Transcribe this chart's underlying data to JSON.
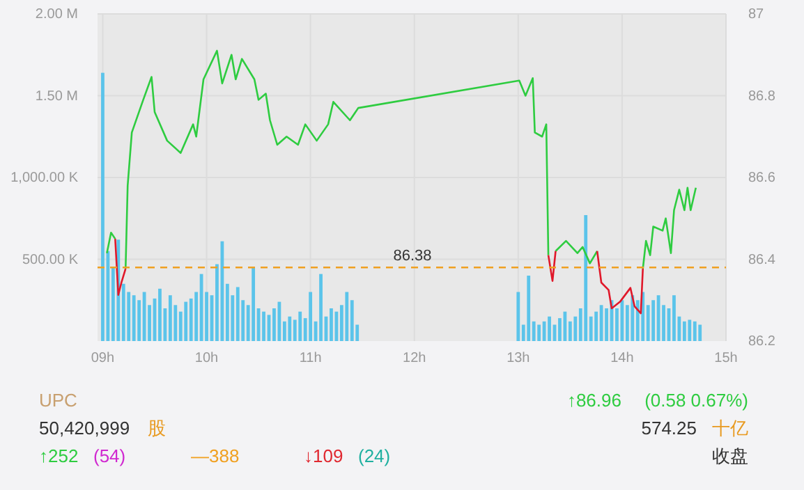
{
  "chart_data": {
    "type": "line",
    "xlim": [
      8.95,
      15
    ],
    "xticks": [
      {
        "value": 9,
        "label": "09h"
      },
      {
        "value": 10,
        "label": "10h"
      },
      {
        "value": 11,
        "label": "11h"
      },
      {
        "value": 12,
        "label": "12h"
      },
      {
        "value": 13,
        "label": "13h"
      },
      {
        "value": 14,
        "label": "14h"
      },
      {
        "value": 15,
        "label": "15h"
      }
    ],
    "ylim": [
      0,
      2
    ],
    "yticks": [
      {
        "value": 0.5,
        "label": "500.00 K"
      },
      {
        "value": 1,
        "label": "1,000.00 K"
      },
      {
        "value": 1.5,
        "label": "1.50 M"
      },
      {
        "value": 2,
        "label": "2.00 M"
      }
    ],
    "y2lim": [
      86.2,
      87
    ],
    "y2ticks": [
      86.2,
      86.4,
      86.6,
      86.8,
      87
    ],
    "grid": true,
    "marker": "none",
    "line_style": "solid",
    "series": [
      {
        "type": "bar",
        "axis": "y",
        "color": "#5bc4ea",
        "x": [
          9,
          9.05,
          9.1,
          9.15,
          9.2,
          9.25,
          9.3,
          9.35,
          9.4,
          9.45,
          9.5,
          9.55,
          9.6,
          9.65,
          9.7,
          9.75,
          9.8,
          9.85,
          9.9,
          9.95,
          10,
          10.05,
          10.1,
          10.15,
          10.2,
          10.25,
          10.3,
          10.35,
          10.4,
          10.45,
          10.5,
          10.55,
          10.6,
          10.65,
          10.7,
          10.75,
          10.8,
          10.85,
          10.9,
          10.95,
          11,
          11.05,
          11.1,
          11.15,
          11.2,
          11.25,
          11.3,
          11.35,
          11.4,
          11.45,
          13,
          13.05,
          13.1,
          13.15,
          13.2,
          13.25,
          13.3,
          13.35,
          13.4,
          13.45,
          13.5,
          13.55,
          13.6,
          13.65,
          13.7,
          13.75,
          13.8,
          13.85,
          13.9,
          13.95,
          14,
          14.05,
          14.1,
          14.15,
          14.2,
          14.25,
          14.3,
          14.35,
          14.4,
          14.45,
          14.5,
          14.55,
          14.6,
          14.65,
          14.7,
          14.75
        ],
        "values": [
          1.64,
          0.55,
          0.45,
          0.62,
          0.35,
          0.3,
          0.28,
          0.25,
          0.3,
          0.22,
          0.26,
          0.32,
          0.2,
          0.28,
          0.22,
          0.18,
          0.24,
          0.26,
          0.3,
          0.41,
          0.3,
          0.28,
          0.47,
          0.61,
          0.35,
          0.28,
          0.33,
          0.25,
          0.22,
          0.45,
          0.2,
          0.18,
          0.16,
          0.2,
          0.24,
          0.12,
          0.15,
          0.13,
          0.18,
          0.14,
          0.3,
          0.12,
          0.41,
          0.15,
          0.2,
          0.18,
          0.22,
          0.3,
          0.25,
          0.1,
          0.3,
          0.1,
          0.4,
          0.12,
          0.1,
          0.12,
          0.15,
          0.1,
          0.14,
          0.18,
          0.12,
          0.15,
          0.2,
          0.77,
          0.15,
          0.18,
          0.22,
          0.2,
          0.25,
          0.2,
          0.25,
          0.22,
          0.28,
          0.25,
          0.3,
          0.22,
          0.25,
          0.28,
          0.22,
          0.2,
          0.28,
          0.15,
          0.12,
          0.13,
          0.12,
          0.1
        ]
      },
      {
        "axis": "y2",
        "color": "#2ecc40",
        "x": [
          9.04,
          9.08,
          9.12,
          9.15,
          9.18,
          9.22,
          9.24,
          9.28,
          9.39,
          9.47,
          9.5,
          9.62,
          9.75,
          9.87,
          9.9,
          9.97,
          10.1,
          10.15,
          10.24,
          10.28,
          10.34,
          10.46,
          10.5,
          10.57,
          10.61,
          10.68,
          10.77,
          10.88,
          10.95,
          11.06,
          11.17,
          11.22,
          11.38,
          11.46,
          13.01,
          13.07,
          13.14,
          13.16,
          13.23,
          13.27,
          13.29,
          13.33,
          13.36,
          13.46,
          13.57,
          13.62,
          13.69,
          13.76,
          13.8,
          13.87,
          13.9,
          13.98,
          14.08,
          14.12,
          14.18,
          14.2,
          14.23,
          14.27,
          14.3,
          14.39,
          14.42,
          14.47,
          14.5,
          14.55,
          14.6,
          14.63,
          14.66,
          14.71
        ],
        "values": [
          86.415,
          86.465,
          86.45,
          null,
          null,
          86.377,
          86.58,
          86.71,
          86.79,
          86.846,
          86.76,
          86.69,
          86.66,
          86.73,
          86.7,
          86.84,
          86.91,
          86.83,
          86.9,
          86.84,
          86.89,
          86.84,
          86.79,
          86.805,
          86.74,
          86.68,
          86.7,
          86.68,
          86.73,
          86.69,
          86.73,
          86.785,
          86.74,
          86.77,
          86.837,
          86.8,
          86.843,
          86.71,
          86.7,
          86.73,
          86.41,
          null,
          86.42,
          86.445,
          86.415,
          86.43,
          86.39,
          86.42,
          null,
          null,
          null,
          null,
          null,
          null,
          null,
          86.377,
          86.445,
          86.41,
          86.48,
          86.47,
          86.5,
          86.415,
          86.52,
          86.57,
          86.52,
          86.575,
          86.52,
          86.575
        ]
      },
      {
        "axis": "y2",
        "color": "#e0182a",
        "x": [
          9.12,
          9.15,
          9.18,
          9.22,
          9.23,
          13.29,
          13.33,
          13.36,
          13.37,
          13.76,
          13.8,
          13.87,
          13.9,
          13.98,
          14.08,
          14.12,
          14.18,
          14.2
        ],
        "values": [
          86.45,
          86.313,
          86.343,
          86.377,
          null,
          86.41,
          86.347,
          86.42,
          null,
          86.42,
          86.343,
          86.325,
          86.28,
          86.296,
          86.33,
          86.285,
          86.268,
          86.377
        ]
      }
    ],
    "ref_lines": [
      {
        "axis": "y2",
        "value": 86.38,
        "label": "86.38",
        "color": "#f0a020",
        "line_style": "dashed"
      }
    ],
    "annotations": [
      "UPC",
      "50,420,999",
      "股",
      "↑252",
      "(54)",
      "—388",
      "↓109",
      "(24)",
      "↑86.96",
      "(0.58 0.67%)",
      "574.25",
      "十亿",
      "收盘"
    ]
  }
}
